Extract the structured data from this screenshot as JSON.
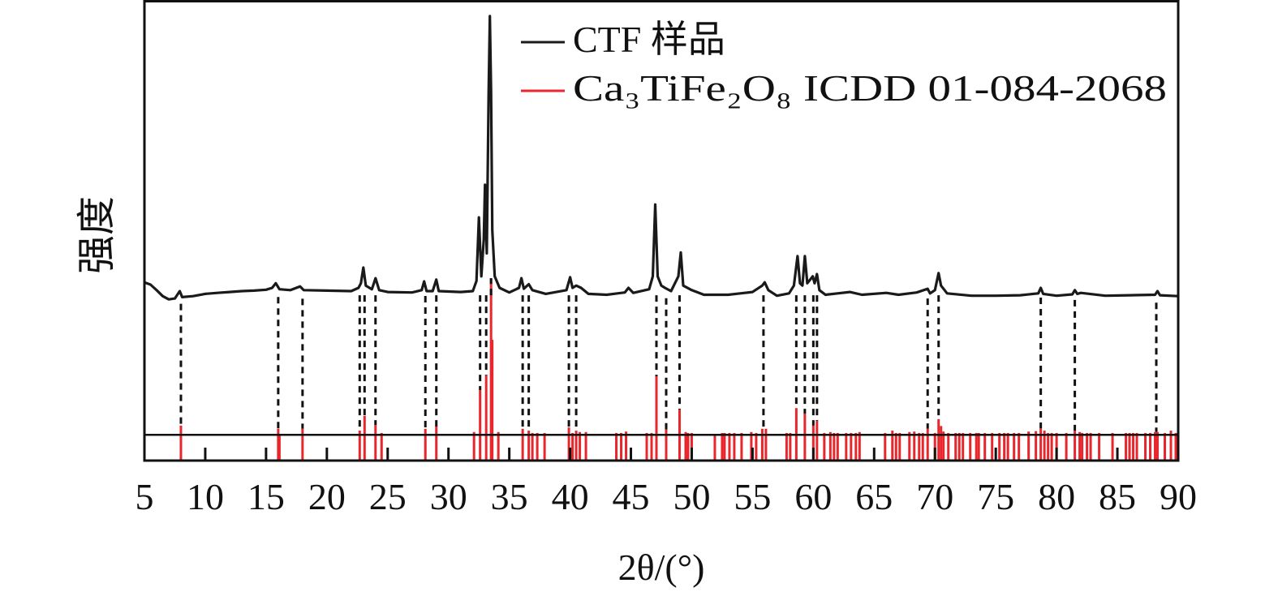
{
  "chart_data": {
    "type": "line",
    "title": "",
    "xlabel": "2θ/(°)",
    "ylabel": "强度",
    "xlim": [
      5,
      90
    ],
    "ylim": [
      0,
      100
    ],
    "xticks": [
      5,
      10,
      15,
      20,
      25,
      30,
      35,
      40,
      45,
      50,
      55,
      60,
      65,
      70,
      75,
      80,
      85,
      90
    ],
    "yticks": [],
    "grid": false,
    "legend_placement": "top-right",
    "colors": {
      "sample": "#1a1a1a",
      "reference": "#e8262b",
      "guide": "#111111"
    },
    "series": [
      {
        "name": "CTF 样品",
        "type": "line",
        "points": [
          [
            5,
            38.7
          ],
          [
            5.5,
            38.2
          ],
          [
            6,
            37
          ],
          [
            6.5,
            35.7
          ],
          [
            7,
            35
          ],
          [
            7.5,
            35.2
          ],
          [
            7.9,
            36.8
          ],
          [
            8.1,
            35.5
          ],
          [
            9,
            35.7
          ],
          [
            10,
            36.2
          ],
          [
            11,
            36.4
          ],
          [
            12,
            36.6
          ],
          [
            13,
            36.8
          ],
          [
            14,
            36.9
          ],
          [
            15,
            37.1
          ],
          [
            15.5,
            37.5
          ],
          [
            15.8,
            38.5
          ],
          [
            16.1,
            37.2
          ],
          [
            17,
            37
          ],
          [
            17.8,
            37.8
          ],
          [
            18.1,
            37
          ],
          [
            20,
            36.9
          ],
          [
            22,
            36.8
          ],
          [
            22.6,
            37.5
          ],
          [
            22.8,
            38.5
          ],
          [
            23.0,
            41.9
          ],
          [
            23.2,
            38
          ],
          [
            23.7,
            37.2
          ],
          [
            24.0,
            39.6
          ],
          [
            24.3,
            37
          ],
          [
            25,
            36.6
          ],
          [
            27,
            36.5
          ],
          [
            27.8,
            37
          ],
          [
            28.0,
            38.9
          ],
          [
            28.2,
            36.8
          ],
          [
            28.7,
            36.8
          ],
          [
            29.0,
            39.3
          ],
          [
            29.2,
            36.8
          ],
          [
            31,
            36.6
          ],
          [
            32,
            36.8
          ],
          [
            32.3,
            39
          ],
          [
            32.5,
            52.8
          ],
          [
            32.7,
            40
          ],
          [
            32.9,
            48
          ],
          [
            33.0,
            59.9
          ],
          [
            33.15,
            45
          ],
          [
            33.3,
            80
          ],
          [
            33.4,
            96.5
          ],
          [
            33.5,
            80
          ],
          [
            33.6,
            50
          ],
          [
            33.8,
            40
          ],
          [
            34.2,
            37.5
          ],
          [
            35,
            36.5
          ],
          [
            35.8,
            37.5
          ],
          [
            36.0,
            39.6
          ],
          [
            36.2,
            37.3
          ],
          [
            36.6,
            38.3
          ],
          [
            36.9,
            37
          ],
          [
            38,
            36.2
          ],
          [
            39.7,
            37
          ],
          [
            40.0,
            39.8
          ],
          [
            40.2,
            37.5
          ],
          [
            40.5,
            38
          ],
          [
            40.9,
            37.5
          ],
          [
            41.5,
            36.2
          ],
          [
            43,
            36
          ],
          [
            44.5,
            36.5
          ],
          [
            44.8,
            37.5
          ],
          [
            45.2,
            36.4
          ],
          [
            46.5,
            37.2
          ],
          [
            46.8,
            40
          ],
          [
            47.0,
            55.6
          ],
          [
            47.2,
            40
          ],
          [
            47.5,
            38
          ],
          [
            47.8,
            37.5
          ],
          [
            48.3,
            36.8
          ],
          [
            48.9,
            40
          ],
          [
            49.1,
            45.2
          ],
          [
            49.3,
            38
          ],
          [
            50,
            37
          ],
          [
            51,
            36
          ],
          [
            53,
            36
          ],
          [
            54,
            36.3
          ],
          [
            55,
            36.6
          ],
          [
            55.8,
            38
          ],
          [
            56.0,
            38.7
          ],
          [
            56.3,
            37
          ],
          [
            57,
            35.8
          ],
          [
            58,
            36.3
          ],
          [
            58.4,
            38
          ],
          [
            58.7,
            44.4
          ],
          [
            58.9,
            38.5
          ],
          [
            59.1,
            38
          ],
          [
            59.3,
            44.4
          ],
          [
            59.5,
            38.5
          ],
          [
            59.8,
            39.5
          ],
          [
            59.95,
            40
          ],
          [
            60.1,
            38.5
          ],
          [
            60.3,
            40.5
          ],
          [
            60.5,
            37
          ],
          [
            61,
            36
          ],
          [
            62,
            36.3
          ],
          [
            63,
            36.6
          ],
          [
            64,
            36
          ],
          [
            66,
            36.4
          ],
          [
            67,
            36
          ],
          [
            68.5,
            36.5
          ],
          [
            69.4,
            37.3
          ],
          [
            69.6,
            36.3
          ],
          [
            70.0,
            37
          ],
          [
            70.3,
            40.7
          ],
          [
            70.5,
            38
          ],
          [
            71,
            36.3
          ],
          [
            73,
            35.8
          ],
          [
            75,
            35.8
          ],
          [
            77,
            35.9
          ],
          [
            78.5,
            36.3
          ],
          [
            78.7,
            37.5
          ],
          [
            78.9,
            36.2
          ],
          [
            80,
            35.8
          ],
          [
            81.3,
            36.1
          ],
          [
            81.5,
            37
          ],
          [
            81.7,
            36.2
          ],
          [
            82,
            36.4
          ],
          [
            84,
            35.8
          ],
          [
            86,
            35.9
          ],
          [
            88.1,
            36
          ],
          [
            88.3,
            36.8
          ],
          [
            88.5,
            35.9
          ],
          [
            90,
            35.7
          ]
        ]
      },
      {
        "name": "Ca₃TiFe₂O₈ ICDD 01-084-2068",
        "type": "stick",
        "sticks": [
          [
            8.0,
            7.6
          ],
          [
            16.0,
            6.9
          ],
          [
            16.1,
            5.8
          ],
          [
            18.0,
            6.9
          ],
          [
            22.7,
            6.5
          ],
          [
            23.1,
            9.7
          ],
          [
            24.0,
            7.7
          ],
          [
            24.5,
            6.0
          ],
          [
            28.1,
            6.9
          ],
          [
            29.0,
            7.4
          ],
          [
            32.1,
            6.2
          ],
          [
            32.6,
            15.3
          ],
          [
            33.1,
            18.5
          ],
          [
            33.5,
            39.6
          ],
          [
            33.6,
            26.2
          ],
          [
            34.1,
            6.2
          ],
          [
            36.1,
            6.9
          ],
          [
            36.6,
            6.5
          ],
          [
            36.9,
            6.0
          ],
          [
            37.3,
            6.0
          ],
          [
            37.9,
            6.0
          ],
          [
            39.9,
            7.2
          ],
          [
            40.2,
            6.0
          ],
          [
            40.5,
            6.5
          ],
          [
            40.8,
            6.2
          ],
          [
            41.3,
            6.2
          ],
          [
            43.8,
            6.0
          ],
          [
            44.2,
            6.0
          ],
          [
            44.6,
            6.3
          ],
          [
            46.3,
            6.0
          ],
          [
            46.7,
            6.0
          ],
          [
            47.1,
            18.3
          ],
          [
            47.9,
            6.7
          ],
          [
            49.0,
            11.1
          ],
          [
            49.5,
            6.2
          ],
          [
            49.7,
            6.0
          ],
          [
            50.0,
            6.0
          ],
          [
            51.9,
            5.5
          ],
          [
            52.5,
            6.0
          ],
          [
            52.7,
            6.0
          ],
          [
            53.1,
            6.0
          ],
          [
            53.5,
            6.0
          ],
          [
            54.1,
            6.0
          ],
          [
            54.9,
            6.2
          ],
          [
            55.3,
            6.0
          ],
          [
            55.8,
            6.9
          ],
          [
            56.1,
            6.9
          ],
          [
            57.8,
            6.0
          ],
          [
            58.1,
            6.0
          ],
          [
            58.6,
            11.4
          ],
          [
            59.3,
            10.2
          ],
          [
            60.0,
            7.6
          ],
          [
            60.3,
            8.6
          ],
          [
            60.9,
            6.0
          ],
          [
            61.4,
            6.2
          ],
          [
            61.7,
            6.0
          ],
          [
            62.0,
            6.0
          ],
          [
            62.7,
            6.0
          ],
          [
            63.1,
            6.0
          ],
          [
            63.5,
            6.0
          ],
          [
            63.8,
            6.2
          ],
          [
            65.9,
            6.0
          ],
          [
            66.5,
            6.5
          ],
          [
            66.8,
            6.0
          ],
          [
            67.1,
            6.0
          ],
          [
            67.9,
            6.2
          ],
          [
            68.3,
            6.3
          ],
          [
            68.7,
            6.0
          ],
          [
            69.0,
            6.0
          ],
          [
            69.4,
            6.9
          ],
          [
            70.0,
            6.0
          ],
          [
            70.3,
            9.0
          ],
          [
            70.5,
            7.5
          ],
          [
            70.7,
            6.3
          ],
          [
            71.1,
            6.0
          ],
          [
            71.7,
            6.0
          ],
          [
            72.0,
            6.0
          ],
          [
            72.3,
            6.0
          ],
          [
            72.9,
            6.0
          ],
          [
            73.4,
            6.0
          ],
          [
            73.6,
            6.0
          ],
          [
            74.1,
            6.0
          ],
          [
            74.7,
            6.0
          ],
          [
            75.3,
            6.0
          ],
          [
            75.7,
            6.0
          ],
          [
            76.0,
            6.0
          ],
          [
            76.5,
            6.0
          ],
          [
            76.9,
            6.0
          ],
          [
            77.7,
            6.3
          ],
          [
            78.3,
            6.4
          ],
          [
            78.7,
            7.0
          ],
          [
            79.0,
            6.5
          ],
          [
            79.3,
            6.0
          ],
          [
            79.6,
            6.0
          ],
          [
            80.0,
            6.0
          ],
          [
            80.8,
            6.0
          ],
          [
            81.5,
            6.5
          ],
          [
            81.9,
            6.2
          ],
          [
            82.1,
            6.0
          ],
          [
            82.5,
            6.0
          ],
          [
            82.8,
            6.0
          ],
          [
            83.5,
            6.0
          ],
          [
            84.6,
            6.0
          ],
          [
            85.7,
            6.0
          ],
          [
            86.0,
            6.0
          ],
          [
            86.3,
            6.0
          ],
          [
            86.6,
            6.0
          ],
          [
            87.3,
            6.0
          ],
          [
            87.7,
            6.0
          ],
          [
            88.1,
            6.2
          ],
          [
            88.3,
            6.2
          ],
          [
            88.9,
            6.0
          ],
          [
            89.4,
            6.5
          ],
          [
            89.8,
            6.0
          ]
        ]
      }
    ],
    "reference_baseline": 5.6,
    "matched_peaks": [
      8.0,
      16.0,
      18.0,
      22.7,
      23.1,
      24.0,
      28.1,
      29.0,
      32.6,
      33.1,
      33.5,
      36.1,
      36.6,
      39.9,
      40.5,
      47.1,
      47.9,
      49.0,
      55.9,
      58.6,
      59.3,
      60.0,
      60.3,
      69.4,
      70.3,
      78.7,
      81.5,
      88.2
    ]
  }
}
